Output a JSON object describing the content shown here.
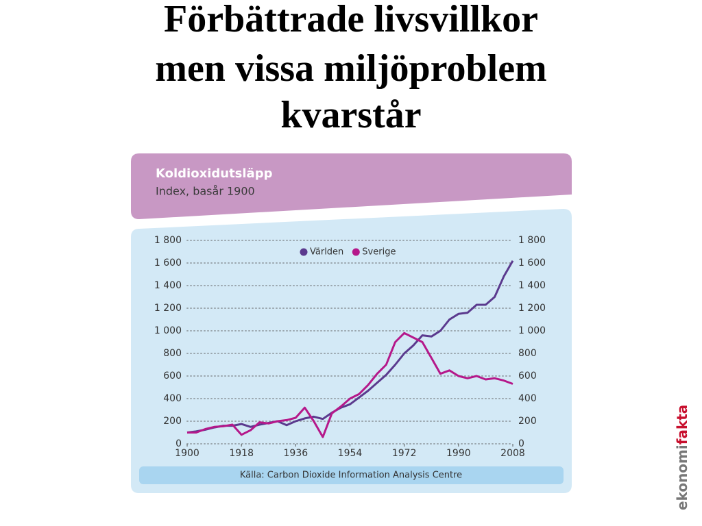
{
  "slide_title": [
    "Förbättrade livsvillkor",
    "men vissa miljöproblem",
    "kvarstår"
  ],
  "logo": [
    "ekonomi",
    "fakta"
  ],
  "chart_data": {
    "type": "line",
    "title": "Koldioxidutsläpp",
    "subtitle": "Index, basår 1900",
    "source": "Källa: Carbon Dioxide Information Analysis Centre",
    "x": [
      1900,
      1903,
      1906,
      1909,
      1912,
      1915,
      1918,
      1921,
      1924,
      1927,
      1930,
      1933,
      1936,
      1939,
      1942,
      1945,
      1948,
      1951,
      1954,
      1957,
      1960,
      1963,
      1966,
      1969,
      1972,
      1975,
      1978,
      1981,
      1984,
      1987,
      1990,
      1993,
      1996,
      1999,
      2002,
      2005,
      2008
    ],
    "series": [
      {
        "name": "Världen",
        "color": "#5b3a8e",
        "values": [
          100,
          110,
          125,
          145,
          160,
          160,
          175,
          150,
          170,
          185,
          200,
          165,
          200,
          225,
          240,
          220,
          275,
          320,
          350,
          410,
          470,
          540,
          610,
          700,
          800,
          870,
          960,
          950,
          1000,
          1100,
          1150,
          1160,
          1230,
          1230,
          1300,
          1480,
          1620
        ]
      },
      {
        "name": "Sverige",
        "color": "#b5188a",
        "values": [
          100,
          100,
          130,
          150,
          155,
          170,
          80,
          120,
          190,
          180,
          200,
          210,
          230,
          320,
          200,
          60,
          270,
          330,
          400,
          440,
          520,
          620,
          700,
          900,
          980,
          940,
          900,
          760,
          620,
          650,
          600,
          580,
          600,
          570,
          580,
          560,
          530
        ]
      }
    ],
    "xlim": [
      1900,
      2008
    ],
    "xticks": [
      1900,
      1918,
      1936,
      1954,
      1972,
      1990,
      2008
    ],
    "ylim": [
      0,
      1800
    ],
    "yticks": [
      0,
      200,
      400,
      600,
      800,
      {
        "value": 1000,
        "label": "1 000"
      },
      {
        "value": 1200,
        "label": "1 200"
      },
      {
        "value": 1400,
        "label": "1 400"
      },
      {
        "value": 1600,
        "label": "1 600"
      },
      {
        "value": 1800,
        "label": "1 800"
      }
    ],
    "grid": true,
    "legend": "top"
  }
}
